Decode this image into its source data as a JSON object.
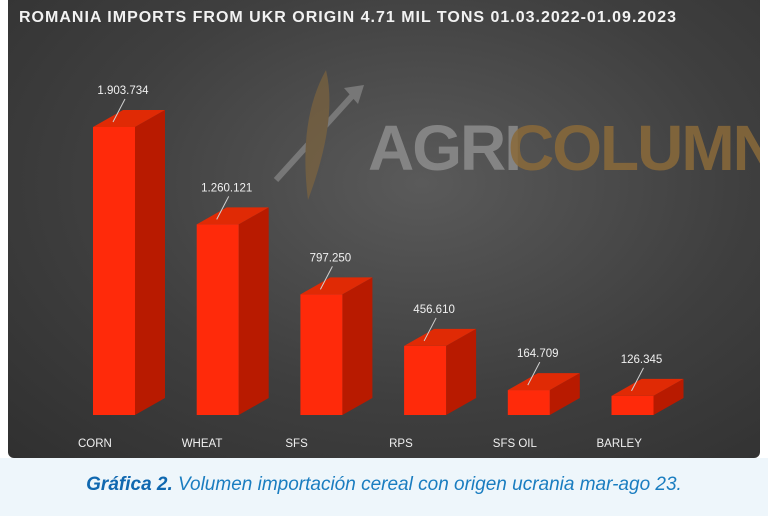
{
  "chart_data": {
    "type": "bar3d",
    "title": "ROMANIA IMPORTS FROM UKR ORIGIN 4.71 MIL TONS 01.03.2022-01.09.2023",
    "watermark": [
      "AGRI",
      "COLUMN"
    ],
    "categories": [
      "CORN",
      "WHEAT",
      "SFS",
      "RPS",
      "SFS OIL",
      "BARLEY"
    ],
    "values": [
      1903734,
      1260121,
      797250,
      456610,
      164709,
      126345
    ],
    "value_labels": [
      "1.903.734",
      "1.260.121",
      "797.250",
      "456.610",
      "164.709",
      "126.345"
    ],
    "color": "#ff2a0a"
  },
  "caption": {
    "label": "Gráfica 2.",
    "text": "Volumen importación cereal con origen ucrania mar-ago 23."
  }
}
